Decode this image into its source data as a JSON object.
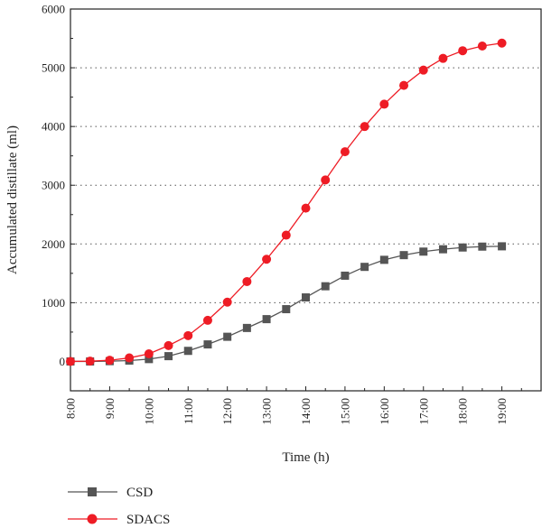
{
  "chart_data": {
    "type": "line",
    "title": "",
    "xlabel": "Time (h)",
    "ylabel": "Accumulated distillate (ml)",
    "ylim": [
      -500,
      6000
    ],
    "yticks": [
      0,
      1000,
      2000,
      3000,
      4000,
      5000,
      6000
    ],
    "xlim_hours": [
      8,
      20
    ],
    "xticks": [
      "8:00",
      "9:00",
      "10:00",
      "11:00",
      "12:00",
      "13:00",
      "14:00",
      "15:00",
      "16:00",
      "17:00",
      "18:00",
      "19:00"
    ],
    "x": [
      "8:00",
      "8:30",
      "9:00",
      "9:30",
      "10:00",
      "10:30",
      "11:00",
      "11:30",
      "12:00",
      "12:30",
      "13:00",
      "13:30",
      "14:00",
      "14:30",
      "15:00",
      "15:30",
      "16:00",
      "16:30",
      "17:00",
      "17:30",
      "18:00",
      "18:30",
      "19:00"
    ],
    "grid": "horizontal-dotted",
    "legend_position": "bottom-left",
    "series": [
      {
        "name": "CSD",
        "color": "#555555",
        "marker": "square",
        "values": [
          0,
          0,
          5,
          15,
          40,
          90,
          180,
          290,
          420,
          570,
          720,
          890,
          1090,
          1280,
          1460,
          1610,
          1730,
          1810,
          1870,
          1910,
          1940,
          1955,
          1960
        ]
      },
      {
        "name": "SDACS",
        "color": "#ee1c25",
        "marker": "circle",
        "values": [
          0,
          5,
          20,
          60,
          130,
          270,
          440,
          700,
          1010,
          1360,
          1740,
          2150,
          2610,
          3090,
          3570,
          4000,
          4380,
          4700,
          4960,
          5160,
          5290,
          5370,
          5420
        ]
      }
    ]
  }
}
